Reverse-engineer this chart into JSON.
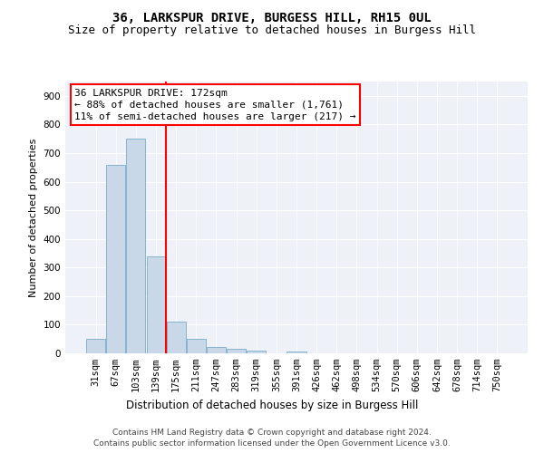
{
  "title": "36, LARKSPUR DRIVE, BURGESS HILL, RH15 0UL",
  "subtitle": "Size of property relative to detached houses in Burgess Hill",
  "xlabel": "Distribution of detached houses by size in Burgess Hill",
  "ylabel": "Number of detached properties",
  "footer_line1": "Contains HM Land Registry data © Crown copyright and database right 2024.",
  "footer_line2": "Contains public sector information licensed under the Open Government Licence v3.0.",
  "bar_labels": [
    "31sqm",
    "67sqm",
    "103sqm",
    "139sqm",
    "175sqm",
    "211sqm",
    "247sqm",
    "283sqm",
    "319sqm",
    "355sqm",
    "391sqm",
    "426sqm",
    "462sqm",
    "498sqm",
    "534sqm",
    "570sqm",
    "606sqm",
    "642sqm",
    "678sqm",
    "714sqm",
    "750sqm"
  ],
  "bar_values": [
    50,
    660,
    750,
    340,
    110,
    50,
    22,
    15,
    10,
    0,
    5,
    0,
    0,
    0,
    0,
    0,
    0,
    0,
    0,
    0,
    0
  ],
  "bar_color": "#c8d8e8",
  "bar_edge_color": "#7aaac8",
  "vline_color": "red",
  "ylim": [
    0,
    950
  ],
  "yticks": [
    0,
    100,
    200,
    300,
    400,
    500,
    600,
    700,
    800,
    900
  ],
  "annotation_line1": "36 LARKSPUR DRIVE: 172sqm",
  "annotation_line2": "← 88% of detached houses are smaller (1,761)",
  "annotation_line3": "11% of semi-detached houses are larger (217) →",
  "annotation_box_color": "white",
  "annotation_box_edge_color": "red",
  "bg_color": "#eef2f8",
  "grid_color": "white",
  "title_fontsize": 10,
  "subtitle_fontsize": 9,
  "tick_fontsize": 7.5,
  "ylabel_fontsize": 8,
  "xlabel_fontsize": 8.5,
  "annot_fontsize": 8
}
